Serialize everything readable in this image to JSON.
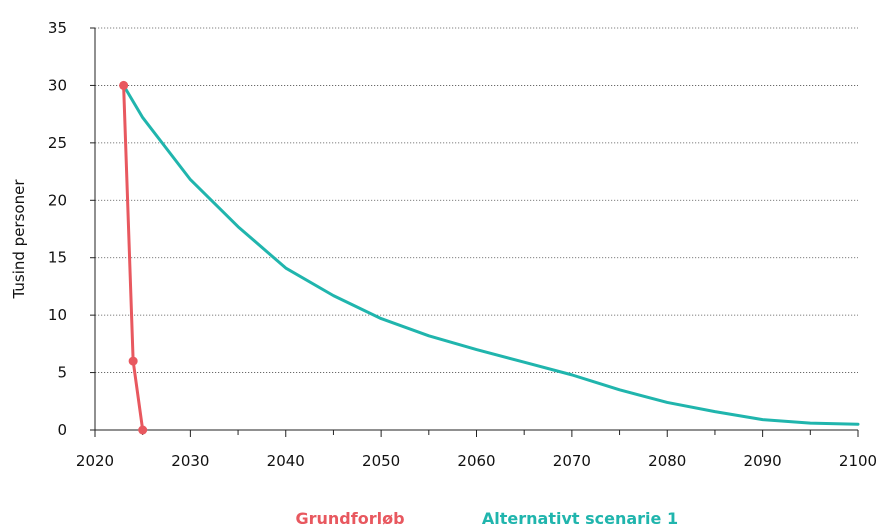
{
  "chart_data": {
    "type": "line",
    "title": "",
    "xlabel": "",
    "ylabel": "Tusind personer",
    "xlim": [
      2020,
      2100
    ],
    "ylim": [
      0,
      35
    ],
    "x_ticks": [
      2020,
      2030,
      2040,
      2050,
      2060,
      2070,
      2080,
      2090,
      2100
    ],
    "y_ticks": [
      0,
      5,
      10,
      15,
      20,
      25,
      30,
      35
    ],
    "grid": "horizontal-dotted",
    "legend_placement": "bottom-center",
    "series": [
      {
        "name": "Grundforløb",
        "color": "#e8585f",
        "markers": true,
        "x": [
          2023,
          2024,
          2025
        ],
        "y": [
          30.0,
          6.0,
          0.0
        ]
      },
      {
        "name": "Alternativt scenarie 1",
        "color": "#20b5ad",
        "markers": false,
        "x": [
          2023,
          2025,
          2030,
          2035,
          2040,
          2045,
          2050,
          2055,
          2060,
          2065,
          2070,
          2075,
          2080,
          2085,
          2090,
          2095,
          2100
        ],
        "y": [
          30.0,
          27.2,
          21.8,
          17.7,
          14.1,
          11.7,
          9.7,
          8.2,
          7.0,
          5.9,
          4.8,
          3.5,
          2.4,
          1.6,
          0.9,
          0.6,
          0.5
        ]
      }
    ]
  }
}
